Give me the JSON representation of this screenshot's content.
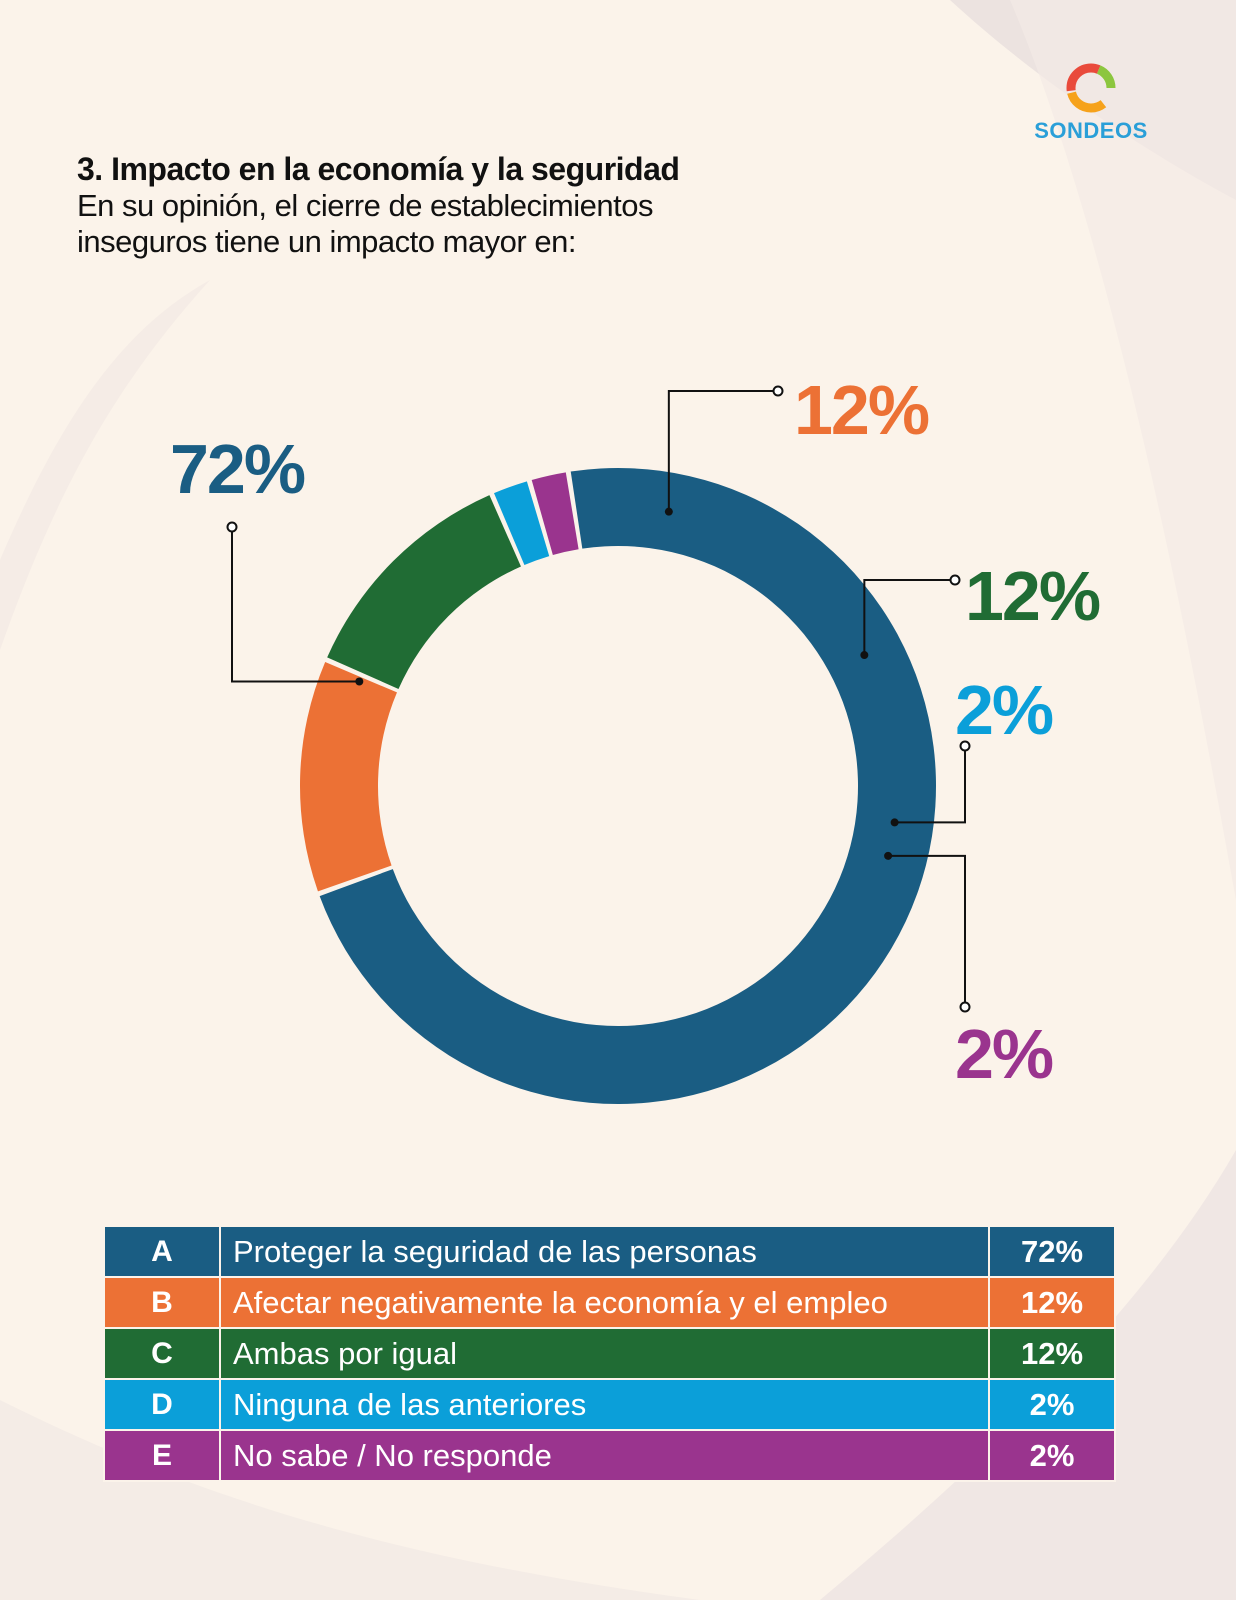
{
  "logo": {
    "text": "SONDEOS"
  },
  "question": {
    "title": "3. Impacto en la economía y la seguridad",
    "text": "En su opinión, el cierre de establecimientos inseguros tiene un impacto mayor en:"
  },
  "colors": {
    "A": "#1a5d83",
    "B": "#ec7135",
    "C": "#206c34",
    "D": "#0b9fd9",
    "E": "#9a348e",
    "background": "#fbf3ea"
  },
  "chart_data": {
    "type": "pie",
    "variant": "donut",
    "categories": [
      "Proteger la seguridad de las personas",
      "Afectar negativamente la economía y el empleo",
      "Ambas por igual",
      "Ninguna de las anteriores",
      "No sabe / No responde"
    ],
    "values": [
      72,
      12,
      12,
      2,
      2
    ],
    "labels": [
      "72%",
      "12%",
      "12%",
      "2%",
      "2%"
    ],
    "letters": [
      "A",
      "B",
      "C",
      "D",
      "E"
    ],
    "unit": "%"
  },
  "legend": {
    "rows": [
      {
        "letter": "A",
        "label": "Proteger la seguridad de las personas",
        "value": "72%"
      },
      {
        "letter": "B",
        "label": "Afectar negativamente la economía y el empleo",
        "value": "12%"
      },
      {
        "letter": "C",
        "label": "Ambas por igual",
        "value": "12%"
      },
      {
        "letter": "D",
        "label": "Ninguna de las anteriores",
        "value": "2%"
      },
      {
        "letter": "E",
        "label": "No sabe / No responde",
        "value": "2%"
      }
    ]
  }
}
